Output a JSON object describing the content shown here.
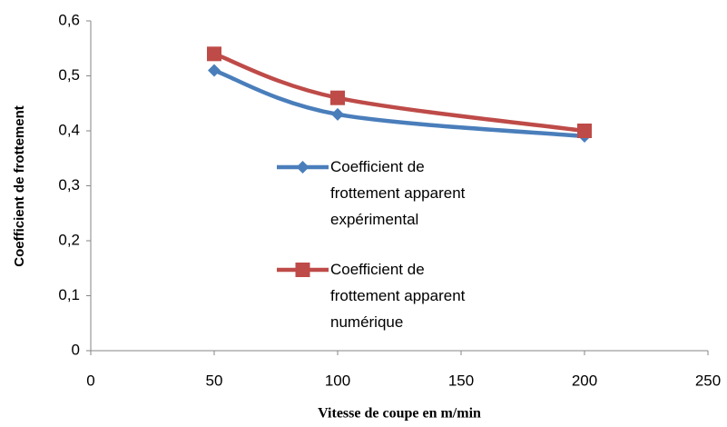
{
  "chart_data": {
    "type": "line",
    "x_label": "Vitesse  de coupe en m/min",
    "y_label": "Coefficient de frottement",
    "x": [
      50,
      100,
      200
    ],
    "series": [
      {
        "name": "Coefficient de frottement apparent expérimental",
        "color": "#4a7ebb",
        "marker": "diamond",
        "values": [
          0.51,
          0.43,
          0.39
        ]
      },
      {
        "name": "Coefficient de frottement apparent numérique",
        "color": "#be4b48",
        "marker": "square",
        "values": [
          0.54,
          0.46,
          0.4
        ]
      }
    ],
    "xlim": [
      0,
      250
    ],
    "xticks": [
      0,
      50,
      100,
      150,
      200,
      250
    ],
    "ylim": [
      0,
      0.6
    ],
    "yticks": [
      0,
      {
        "value": 0.1,
        "label": "0,1"
      },
      {
        "value": 0.2,
        "label": "0,2"
      },
      {
        "value": 0.3,
        "label": "0,3"
      },
      {
        "value": 0.4,
        "label": "0,4"
      },
      {
        "value": 0.5,
        "label": "0,5"
      },
      {
        "value": 0.6,
        "label": "0,6"
      }
    ],
    "smooth": true,
    "grid": false
  }
}
